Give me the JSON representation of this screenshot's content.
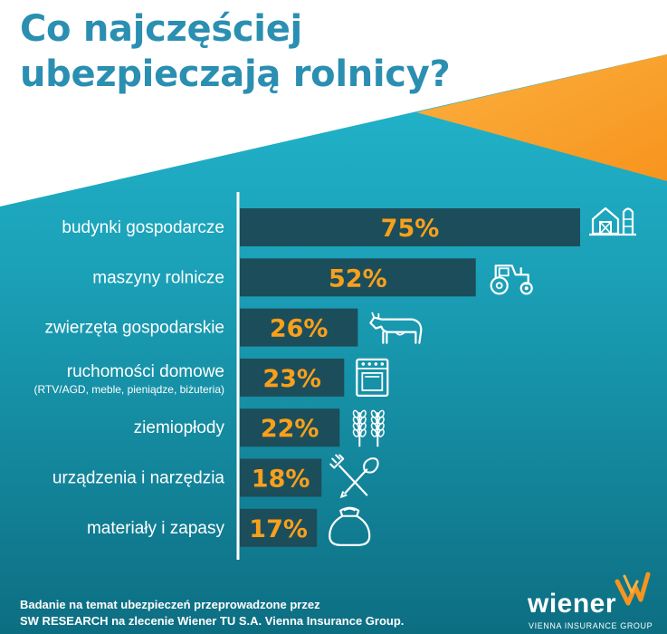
{
  "title": {
    "line1": "Co najczęściej",
    "line2": "ubezpieczają rolnicy?"
  },
  "colors": {
    "bar": "#1c4d5a",
    "value_text": "#f9a01b",
    "title": "#2a8fb1",
    "accent": "#f7941d",
    "bg_top": "#23b7cf",
    "bg_bottom": "#0f7488"
  },
  "chart_data": {
    "type": "bar",
    "orientation": "horizontal",
    "categories": [
      "budynki gospodarcze",
      "maszyny rolnicze",
      "zwierzęta gospodarskie",
      "ruchomości domowe",
      "ziemiopłody",
      "urządzenia i narzędzia",
      "materiały i zapasy"
    ],
    "category_sublabels": [
      "",
      "",
      "",
      "(RTV/AGD, meble, pieniądze, biżuteria)",
      "",
      "",
      ""
    ],
    "values": [
      75,
      52,
      26,
      23,
      22,
      18,
      17
    ],
    "value_labels": [
      "75%",
      "52%",
      "26%",
      "23%",
      "22%",
      "18%",
      "17%"
    ],
    "icons": [
      "barn-icon",
      "tractor-icon",
      "cow-icon",
      "stove-icon",
      "wheat-icon",
      "pitchfork-shovel-icon",
      "sack-icon"
    ],
    "xlim": [
      0,
      100
    ]
  },
  "footer": {
    "line1": "Badanie na temat ubezpieczeń przeprowadzone przez",
    "line2": "SW RESEARCH na zlecenie Wiener TU S.A. Vienna Insurance Group."
  },
  "brand": {
    "name": "wiener",
    "tagline": "VIENNA INSURANCE GROUP"
  }
}
